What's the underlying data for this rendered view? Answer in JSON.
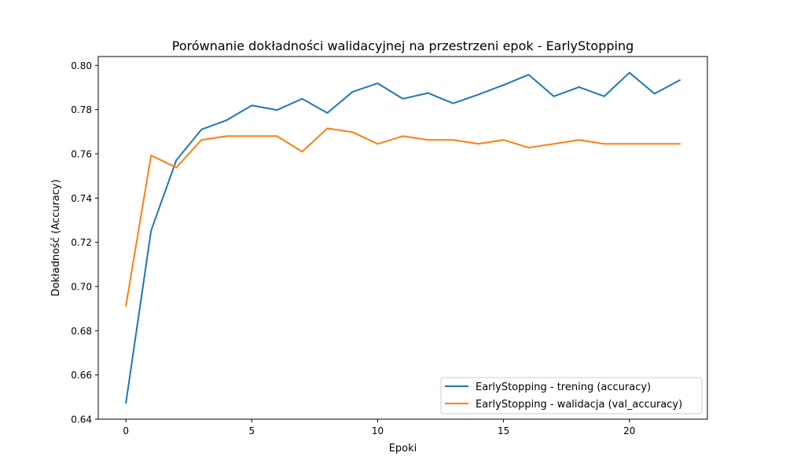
{
  "chart_data": {
    "type": "line",
    "title": "Porównanie dokładności walidacyjnej na przestrzeni epok - EarlyStopping",
    "xlabel": "Epoki",
    "ylabel": "Dokładność (Accuracy)",
    "xlim": [
      -1.1,
      23.1
    ],
    "ylim": [
      0.64,
      0.804
    ],
    "xticks": [
      0,
      5,
      10,
      15,
      20
    ],
    "xtick_labels": [
      "0",
      "5",
      "10",
      "15",
      "20"
    ],
    "yticks": [
      0.64,
      0.66,
      0.68,
      0.7,
      0.72,
      0.74,
      0.76,
      0.78,
      0.8
    ],
    "ytick_labels": [
      "0.64",
      "0.66",
      "0.68",
      "0.70",
      "0.72",
      "0.74",
      "0.76",
      "0.78",
      "0.80"
    ],
    "grid": false,
    "legend_position": "lower-right",
    "x": [
      0,
      1,
      2,
      3,
      4,
      5,
      6,
      7,
      8,
      9,
      10,
      11,
      12,
      13,
      14,
      15,
      16,
      17,
      18,
      19,
      20,
      21,
      22
    ],
    "series": [
      {
        "name": "EarlyStopping - trening (accuracy)",
        "color": "#1f77b4",
        "values": [
          0.6474,
          0.7253,
          0.7571,
          0.771,
          0.7752,
          0.7819,
          0.7798,
          0.7849,
          0.7785,
          0.788,
          0.7919,
          0.7849,
          0.7875,
          0.7828,
          0.7868,
          0.7911,
          0.7958,
          0.786,
          0.7902,
          0.786,
          0.7967,
          0.7872,
          0.7933
        ]
      },
      {
        "name": "EarlyStopping - walidacja (val_accuracy)",
        "color": "#ff7f0e",
        "values": [
          0.6913,
          0.7593,
          0.7538,
          0.7663,
          0.768,
          0.768,
          0.768,
          0.761,
          0.7715,
          0.7698,
          0.7645,
          0.768,
          0.7663,
          0.7663,
          0.7645,
          0.7663,
          0.7628,
          0.7645,
          0.7663,
          0.7645,
          0.7645,
          0.7645,
          0.7645
        ]
      }
    ]
  }
}
